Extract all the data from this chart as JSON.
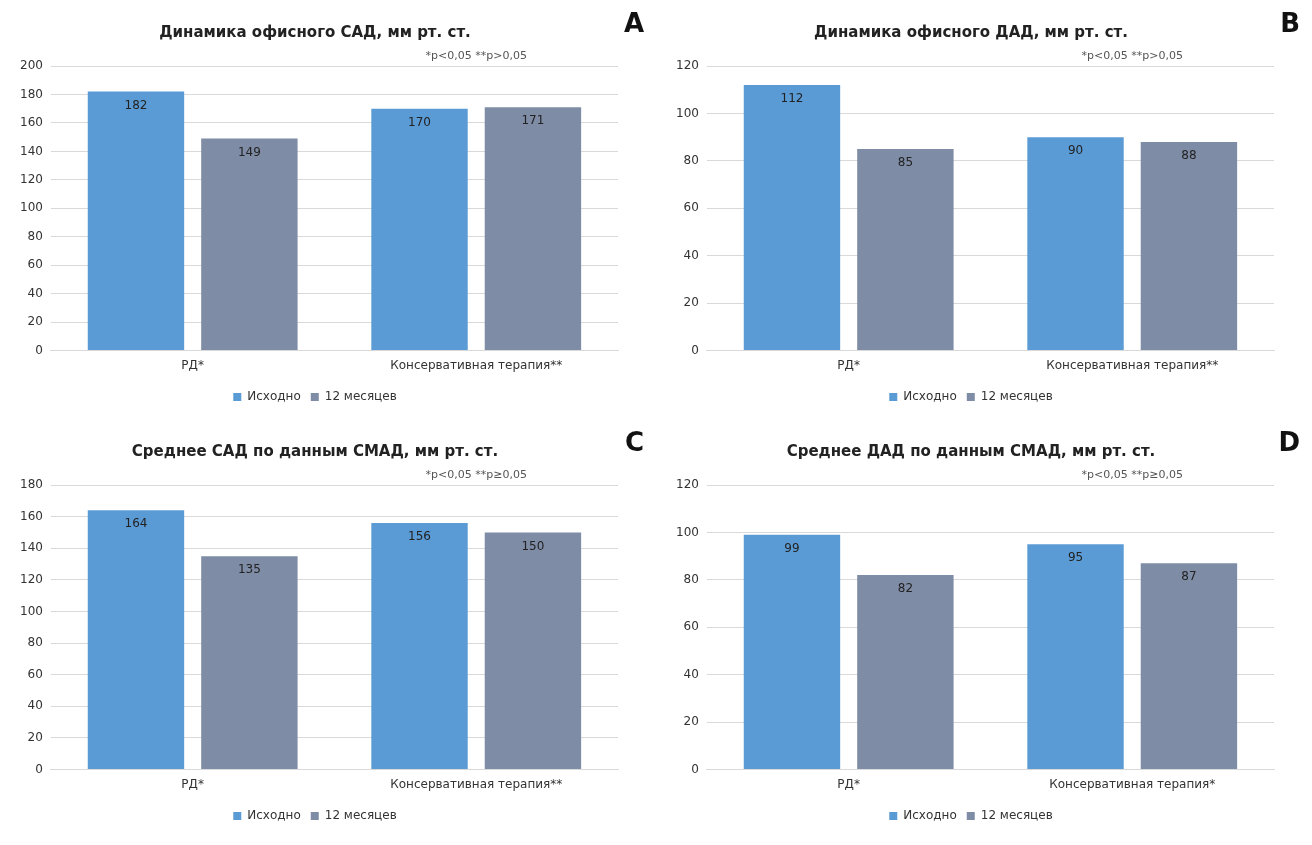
{
  "chart_data": [
    {
      "type": "bar",
      "title": "Динамика офисного САД, мм рт. ст.",
      "categories": [
        "РД*",
        "Консервативная терапия**"
      ],
      "series": [
        {
          "name": "Исходно",
          "color": "#5b9bd5",
          "values": [
            182,
            170
          ]
        },
        {
          "name": "12 месяцев",
          "color": "#7f8ca6",
          "values": [
            149,
            171
          ]
        }
      ],
      "ylim": [
        0,
        200
      ],
      "yticks": [
        0,
        20,
        40,
        60,
        80,
        100,
        120,
        140,
        160,
        180,
        200
      ],
      "grid": "y",
      "legend": "bottom",
      "data_labels": true,
      "annotations": [
        "A",
        "*p<0,05 **p>0,05"
      ]
    },
    {
      "type": "bar",
      "title": "Динамика офисного ДАД, мм рт. ст.",
      "categories": [
        "РД*",
        "Консервативная терапия**"
      ],
      "series": [
        {
          "name": "Исходно",
          "color": "#5b9bd5",
          "values": [
            112,
            90
          ]
        },
        {
          "name": "12 месяцев",
          "color": "#7f8ca6",
          "values": [
            85,
            88
          ]
        }
      ],
      "ylim": [
        0,
        120
      ],
      "yticks": [
        0,
        20,
        40,
        60,
        80,
        100,
        120
      ],
      "grid": "y",
      "legend": "bottom",
      "data_labels": true,
      "annotations": [
        "B",
        "*p<0,05 **p>0,05"
      ]
    },
    {
      "type": "bar",
      "title": "Среднее САД по данным СМАД, мм рт. ст.",
      "categories": [
        "РД*",
        "Консервативная терапия**"
      ],
      "series": [
        {
          "name": "Исходно",
          "color": "#5b9bd5",
          "values": [
            164,
            156
          ]
        },
        {
          "name": "12 месяцев",
          "color": "#7f8ca6",
          "values": [
            135,
            150
          ]
        }
      ],
      "ylim": [
        0,
        180
      ],
      "yticks": [
        0,
        20,
        40,
        60,
        80,
        100,
        120,
        140,
        160,
        180
      ],
      "grid": "y",
      "legend": "bottom",
      "data_labels": true,
      "annotations": [
        "C",
        "*p<0,05 **p≥0,05"
      ]
    },
    {
      "type": "bar",
      "title": "Среднее ДАД по данным СМАД, мм рт. ст.",
      "categories": [
        "РД*",
        "Консервативная терапия*"
      ],
      "series": [
        {
          "name": "Исходно",
          "color": "#5b9bd5",
          "values": [
            99,
            95
          ]
        },
        {
          "name": "12 месяцев",
          "color": "#7f8ca6",
          "values": [
            82,
            87
          ]
        }
      ],
      "ylim": [
        0,
        120
      ],
      "yticks": [
        0,
        20,
        40,
        60,
        80,
        100,
        120
      ],
      "grid": "y",
      "legend": "bottom",
      "data_labels": true,
      "annotations": [
        "D",
        "*p<0,05 **p≥0,05"
      ]
    }
  ]
}
